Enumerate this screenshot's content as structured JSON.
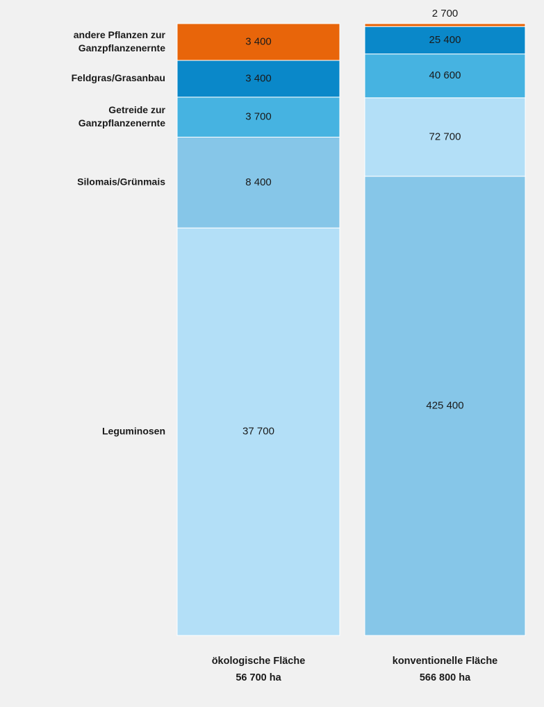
{
  "chart_data": {
    "type": "stacked_bar_percent",
    "categories": [
      "ökologische Fläche",
      "konventionelle Fläche"
    ],
    "totals": [
      56700,
      566800
    ],
    "total_labels": [
      "56 700 ha",
      "566 800 ha"
    ],
    "stack_order": [
      [
        4,
        3,
        2,
        1,
        0
      ],
      [
        3,
        4,
        2,
        1,
        0
      ]
    ],
    "series": [
      {
        "name": "andere Pflanzen zur\nGanzpflanzenernte",
        "color": "#e8650a",
        "values": [
          3400,
          2700
        ],
        "value_labels": [
          "3 400",
          "2 700"
        ]
      },
      {
        "name": "Feldgras/Grasanbau",
        "color": "#0a88c9",
        "values": [
          3400,
          25400
        ],
        "value_labels": [
          "3 400",
          "25 400"
        ]
      },
      {
        "name": "Getreide zur\nGanzpflanzenernte",
        "color": "#46b3e1",
        "values": [
          3700,
          40600
        ],
        "value_labels": [
          "3 700",
          "40 600"
        ]
      },
      {
        "name": "Silomais/Grünmais",
        "color": "#86c6e8",
        "values": [
          8400,
          425400
        ],
        "value_labels": [
          "8 400",
          "425 400"
        ]
      },
      {
        "name": "Leguminosen",
        "color": "#b3dff7",
        "values": [
          37700,
          72700
        ],
        "value_labels": [
          "37 700",
          "72 700"
        ]
      }
    ]
  }
}
